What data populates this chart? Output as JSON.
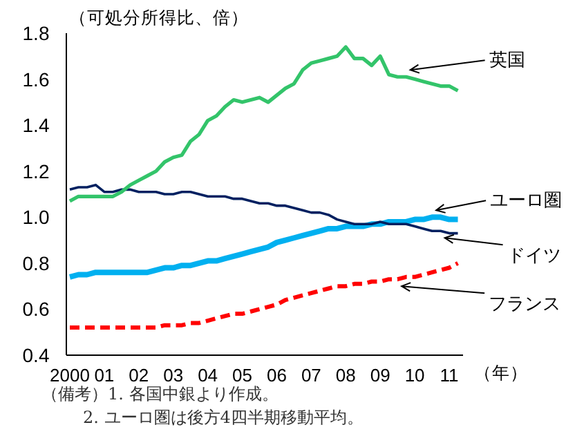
{
  "chart_data": {
    "type": "line",
    "ylabel": "（可処分所得比、倍）",
    "xlabel": "（年）",
    "annotations": [
      "（備考）1. 各国中銀より作成。",
      "2. ユーロ圏は後方4四半期移動平均。"
    ],
    "x": [
      2000,
      2000.25,
      2000.5,
      2000.75,
      2001,
      2001.25,
      2001.5,
      2001.75,
      2002,
      2002.25,
      2002.5,
      2002.75,
      2003,
      2003.25,
      2003.5,
      2003.75,
      2004,
      2004.25,
      2004.5,
      2004.75,
      2005,
      2005.25,
      2005.5,
      2005.75,
      2006,
      2006.25,
      2006.5,
      2006.75,
      2007,
      2007.25,
      2007.5,
      2007.75,
      2008,
      2008.25,
      2008.5,
      2008.75,
      2009,
      2009.25,
      2009.5,
      2009.75,
      2010,
      2010.25,
      2010.5,
      2010.75,
      2011,
      2011.25
    ],
    "series": [
      {
        "name": "英国",
        "color": "#33c46a",
        "line_style": "solid",
        "values": [
          1.07,
          1.09,
          1.09,
          1.09,
          1.09,
          1.09,
          1.11,
          1.14,
          1.16,
          1.18,
          1.2,
          1.24,
          1.26,
          1.27,
          1.33,
          1.36,
          1.42,
          1.44,
          1.48,
          1.51,
          1.5,
          1.51,
          1.52,
          1.5,
          1.53,
          1.56,
          1.58,
          1.64,
          1.67,
          1.68,
          1.69,
          1.7,
          1.74,
          1.69,
          1.69,
          1.66,
          1.7,
          1.62,
          1.61,
          1.61,
          1.6,
          1.59,
          1.58,
          1.57,
          1.57,
          1.55
        ]
      },
      {
        "name": "ユーロ圏",
        "color": "#00b0f0",
        "line_style": "solid",
        "values": [
          0.74,
          0.75,
          0.75,
          0.76,
          0.76,
          0.76,
          0.76,
          0.76,
          0.76,
          0.76,
          0.77,
          0.78,
          0.78,
          0.79,
          0.79,
          0.8,
          0.81,
          0.81,
          0.82,
          0.83,
          0.84,
          0.85,
          0.86,
          0.87,
          0.89,
          0.9,
          0.91,
          0.92,
          0.93,
          0.94,
          0.95,
          0.95,
          0.96,
          0.96,
          0.96,
          0.97,
          0.97,
          0.98,
          0.98,
          0.98,
          0.99,
          0.99,
          1.0,
          1.0,
          0.99,
          0.99
        ]
      },
      {
        "name": "ドイツ",
        "color": "#002060",
        "line_style": "solid",
        "values": [
          1.12,
          1.13,
          1.13,
          1.14,
          1.11,
          1.11,
          1.12,
          1.12,
          1.11,
          1.11,
          1.11,
          1.1,
          1.1,
          1.11,
          1.11,
          1.1,
          1.09,
          1.09,
          1.09,
          1.08,
          1.08,
          1.07,
          1.06,
          1.06,
          1.05,
          1.05,
          1.04,
          1.03,
          1.02,
          1.02,
          1.01,
          0.99,
          0.98,
          0.97,
          0.97,
          0.97,
          0.98,
          0.97,
          0.97,
          0.97,
          0.96,
          0.95,
          0.94,
          0.94,
          0.93,
          0.93
        ]
      },
      {
        "name": "フランス",
        "color": "#ff0000",
        "line_style": "dashed",
        "values": [
          0.52,
          0.52,
          0.52,
          0.52,
          0.52,
          0.52,
          0.52,
          0.52,
          0.52,
          0.52,
          0.52,
          0.53,
          0.53,
          0.53,
          0.54,
          0.54,
          0.55,
          0.56,
          0.57,
          0.58,
          0.58,
          0.59,
          0.6,
          0.61,
          0.62,
          0.64,
          0.65,
          0.66,
          0.67,
          0.68,
          0.69,
          0.7,
          0.7,
          0.71,
          0.71,
          0.72,
          0.72,
          0.73,
          0.73,
          0.74,
          0.74,
          0.75,
          0.76,
          0.77,
          0.78,
          0.8
        ]
      }
    ],
    "xlim": [
      1999.9,
      2011.4
    ],
    "ylim": [
      0.4,
      1.8
    ],
    "xticks": [
      {
        "value": 2000,
        "label": "2000"
      },
      {
        "value": 2001,
        "label": "01"
      },
      {
        "value": 2002,
        "label": "02"
      },
      {
        "value": 2003,
        "label": "03"
      },
      {
        "value": 2004,
        "label": "04"
      },
      {
        "value": 2005,
        "label": "05"
      },
      {
        "value": 2006,
        "label": "06"
      },
      {
        "value": 2007,
        "label": "07"
      },
      {
        "value": 2008,
        "label": "08"
      },
      {
        "value": 2009,
        "label": "09"
      },
      {
        "value": 2010,
        "label": "10"
      },
      {
        "value": 2011,
        "label": "11"
      }
    ],
    "yticks": [
      {
        "value": 0.4,
        "label": "0.4"
      },
      {
        "value": 0.6,
        "label": "0.6"
      },
      {
        "value": 0.8,
        "label": "0.8"
      },
      {
        "value": 1.0,
        "label": "1.0"
      },
      {
        "value": 1.2,
        "label": "1.2"
      },
      {
        "value": 1.4,
        "label": "1.4"
      },
      {
        "value": 1.6,
        "label": "1.6"
      },
      {
        "value": 1.8,
        "label": "1.8"
      }
    ],
    "grid": false
  }
}
